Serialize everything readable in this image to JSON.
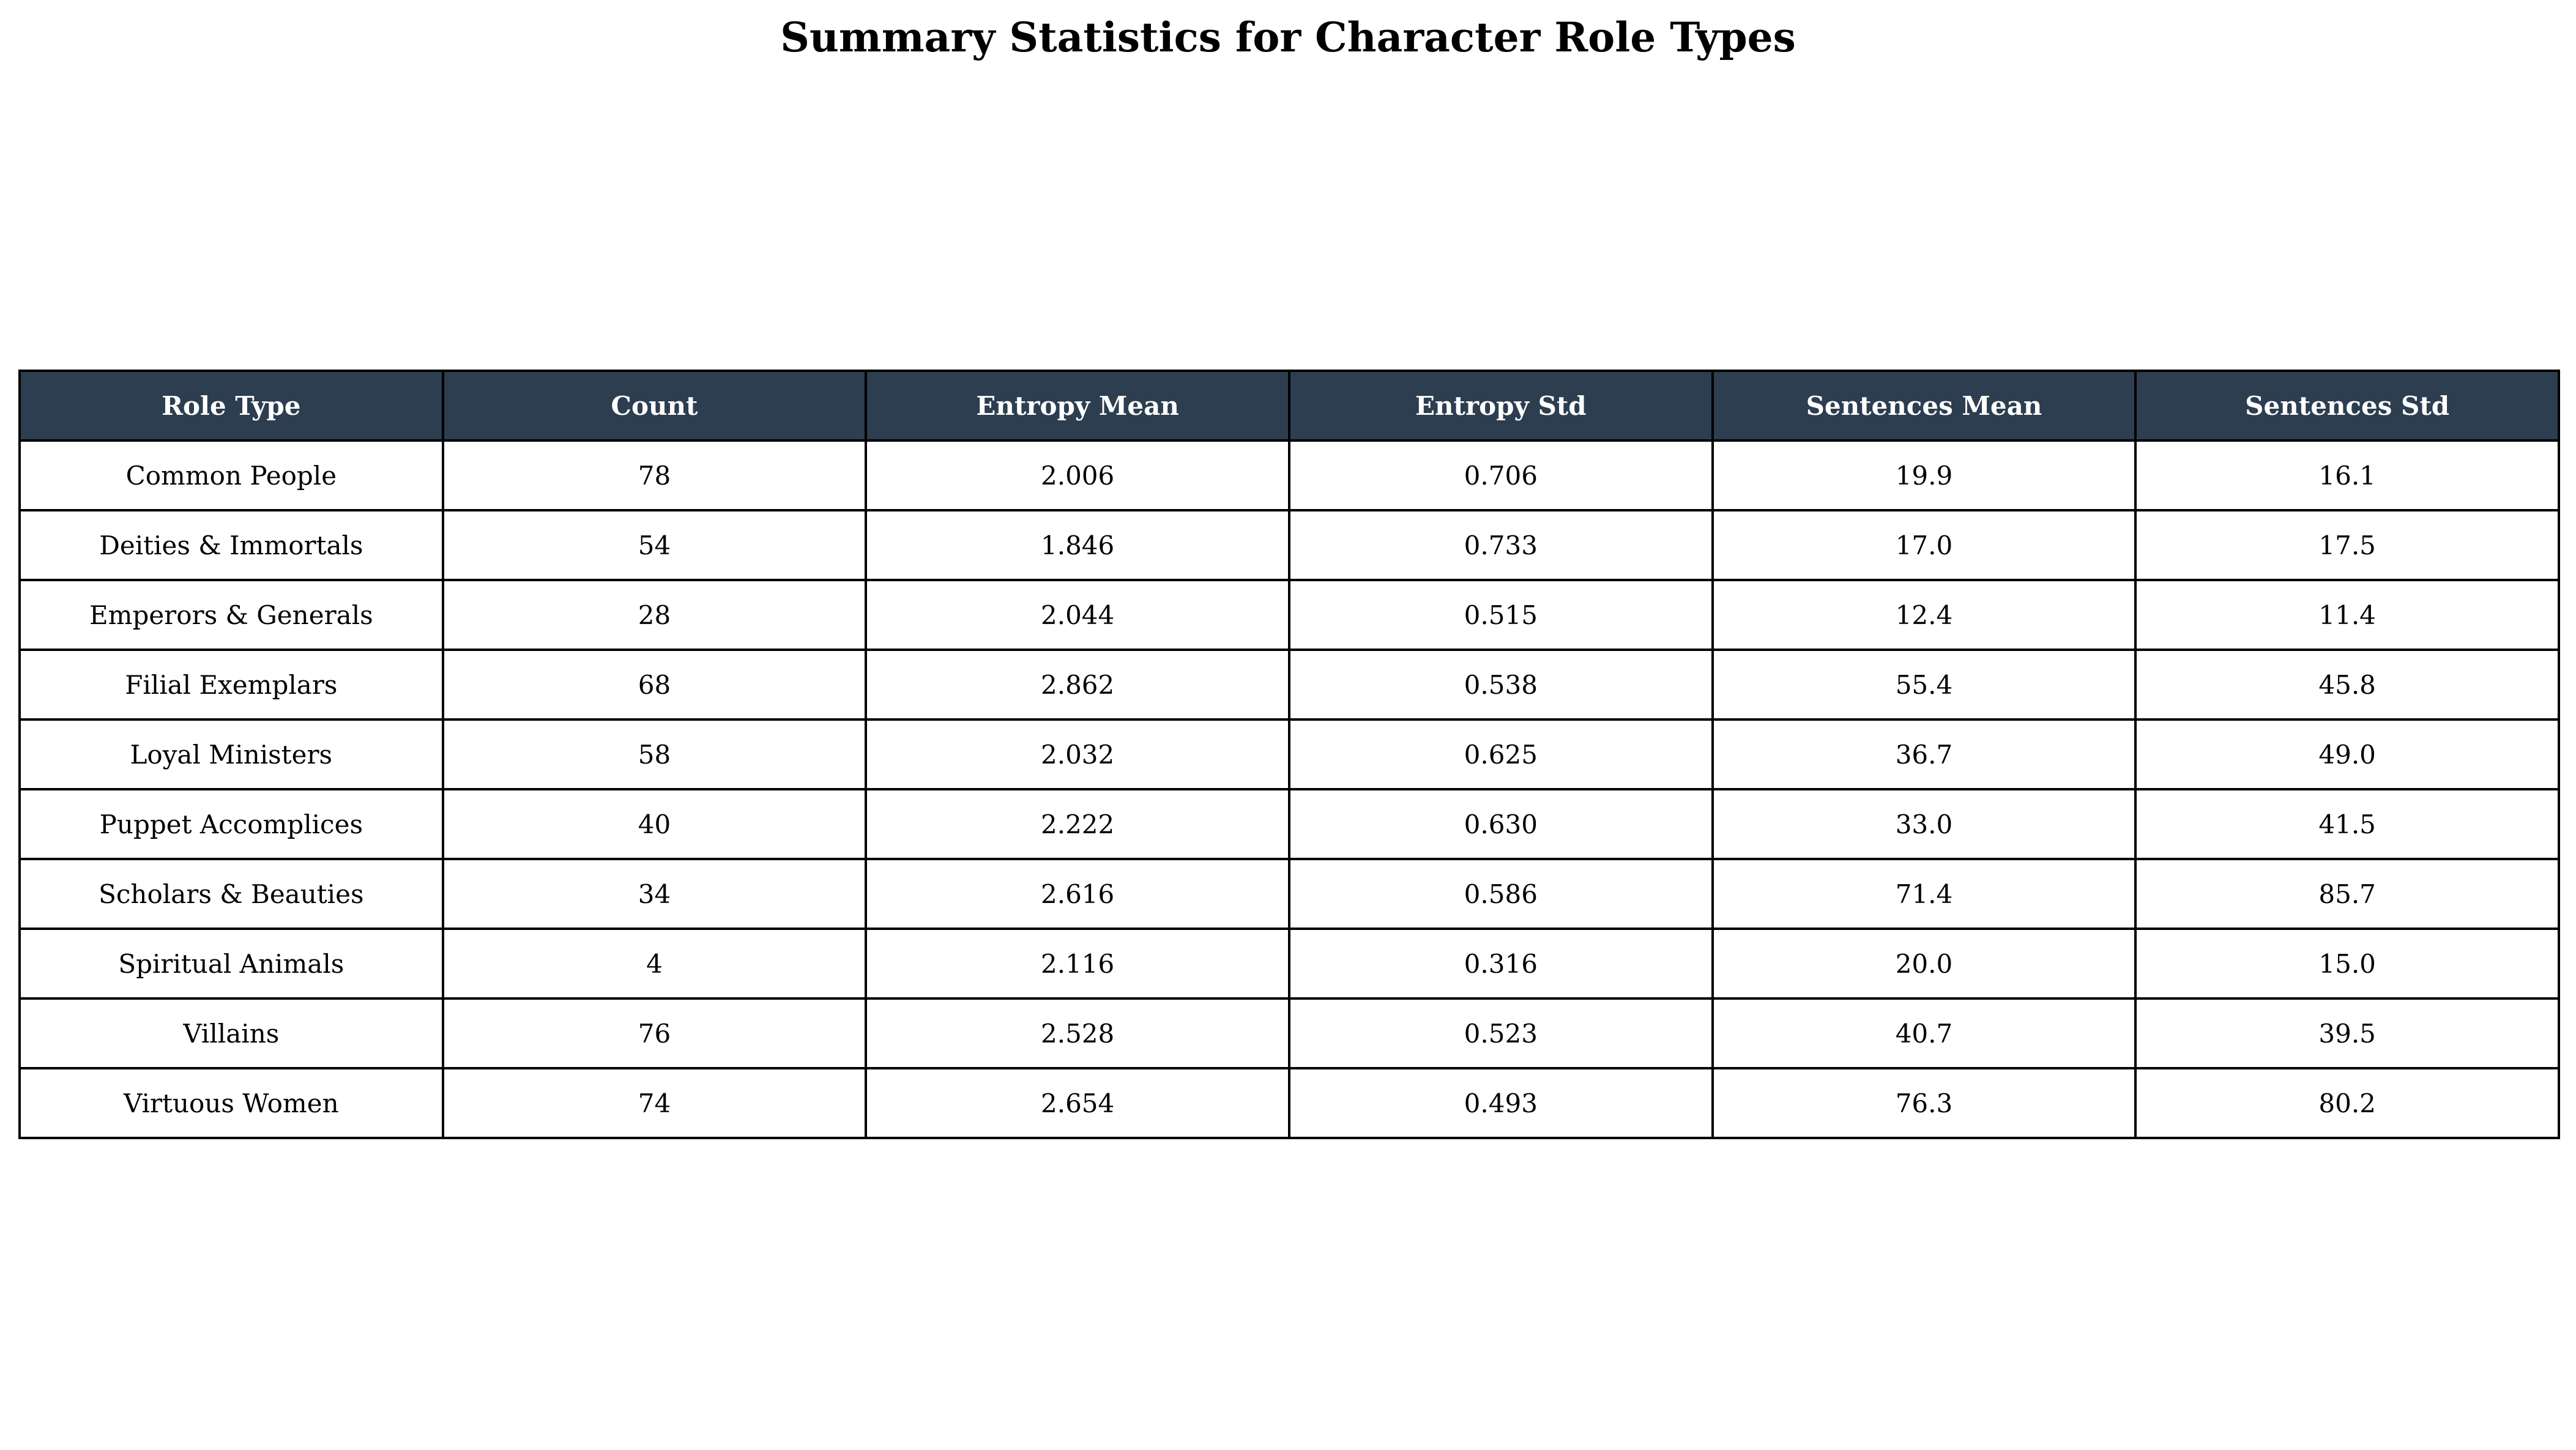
{
  "chart_data": {
    "type": "table",
    "title": "Summary Statistics for Character Role Types",
    "header_color": "#2c3e50",
    "header_text_color": "#ffffff",
    "columns": [
      "Role Type",
      "Count",
      "Entropy Mean",
      "Entropy Std",
      "Sentences Mean",
      "Sentences Std"
    ],
    "rows": [
      [
        "Common People",
        "78",
        "2.006",
        "0.706",
        "19.9",
        "16.1"
      ],
      [
        "Deities & Immortals",
        "54",
        "1.846",
        "0.733",
        "17.0",
        "17.5"
      ],
      [
        "Emperors & Generals",
        "28",
        "2.044",
        "0.515",
        "12.4",
        "11.4"
      ],
      [
        "Filial Exemplars",
        "68",
        "2.862",
        "0.538",
        "55.4",
        "45.8"
      ],
      [
        "Loyal Ministers",
        "58",
        "2.032",
        "0.625",
        "36.7",
        "49.0"
      ],
      [
        "Puppet Accomplices",
        "40",
        "2.222",
        "0.630",
        "33.0",
        "41.5"
      ],
      [
        "Scholars & Beauties",
        "34",
        "2.616",
        "0.586",
        "71.4",
        "85.7"
      ],
      [
        "Spiritual Animals",
        "4",
        "2.116",
        "0.316",
        "20.0",
        "15.0"
      ],
      [
        "Villains",
        "76",
        "2.528",
        "0.523",
        "40.7",
        "39.5"
      ],
      [
        "Virtuous Women",
        "74",
        "2.654",
        "0.493",
        "76.3",
        "80.2"
      ]
    ]
  }
}
